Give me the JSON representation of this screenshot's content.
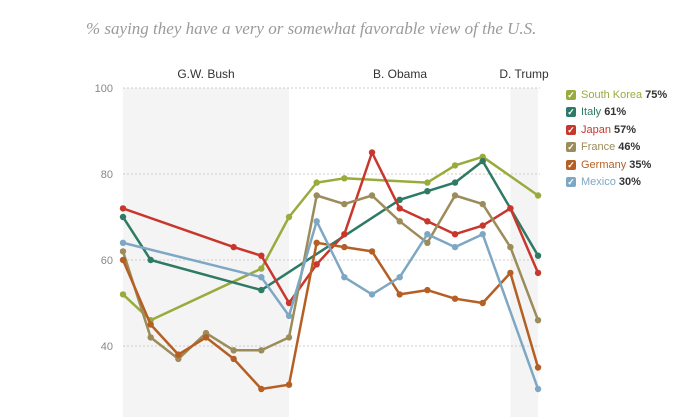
{
  "title": "% saying they have a very or somewhat favorable view of the U.S.",
  "periods": [
    {
      "label": "G.W. Bush",
      "start": 2002,
      "end": 2008
    },
    {
      "label": "B. Obama",
      "start": 2008,
      "end": 2016
    },
    {
      "label": "D. Trump",
      "start": 2016,
      "end": 2017
    }
  ],
  "chart_data": {
    "type": "line",
    "xlim": [
      2002,
      2017
    ],
    "ylim": [
      24,
      100
    ],
    "yticks": [
      40,
      60,
      80,
      100
    ],
    "grid": true,
    "legend_position": "right",
    "series": [
      {
        "name": "South Korea",
        "latest": "75%",
        "color": "#9aab3d",
        "points": [
          [
            2002,
            52
          ],
          [
            2003,
            46
          ],
          [
            2007,
            58
          ],
          [
            2008,
            70
          ],
          [
            2009,
            78
          ],
          [
            2010,
            79
          ],
          [
            2013,
            78
          ],
          [
            2014,
            82
          ],
          [
            2015,
            84
          ],
          [
            2017,
            75
          ]
        ]
      },
      {
        "name": "Italy",
        "latest": "61%",
        "color": "#2e7a64",
        "points": [
          [
            2002,
            70
          ],
          [
            2003,
            60
          ],
          [
            2007,
            53
          ],
          [
            2012,
            74
          ],
          [
            2013,
            76
          ],
          [
            2014,
            78
          ],
          [
            2015,
            83
          ],
          [
            2016,
            72
          ],
          [
            2017,
            61
          ]
        ]
      },
      {
        "name": "Japan",
        "latest": "57%",
        "color": "#c8372d",
        "points": [
          [
            2002,
            72
          ],
          [
            2006,
            63
          ],
          [
            2007,
            61
          ],
          [
            2008,
            50
          ],
          [
            2009,
            59
          ],
          [
            2010,
            66
          ],
          [
            2011,
            85
          ],
          [
            2012,
            72
          ],
          [
            2013,
            69
          ],
          [
            2014,
            66
          ],
          [
            2015,
            68
          ],
          [
            2016,
            72
          ],
          [
            2017,
            57
          ]
        ]
      },
      {
        "name": "France",
        "latest": "46%",
        "color": "#9b8c5a",
        "points": [
          [
            2002,
            62
          ],
          [
            2003,
            42
          ],
          [
            2004,
            37
          ],
          [
            2005,
            43
          ],
          [
            2006,
            39
          ],
          [
            2007,
            39
          ],
          [
            2008,
            42
          ],
          [
            2009,
            75
          ],
          [
            2010,
            73
          ],
          [
            2011,
            75
          ],
          [
            2012,
            69
          ],
          [
            2013,
            64
          ],
          [
            2014,
            75
          ],
          [
            2015,
            73
          ],
          [
            2016,
            63
          ],
          [
            2017,
            46
          ]
        ]
      },
      {
        "name": "Germany",
        "latest": "35%",
        "color": "#b55f25",
        "points": [
          [
            2002,
            60
          ],
          [
            2003,
            45
          ],
          [
            2004,
            38
          ],
          [
            2005,
            42
          ],
          [
            2006,
            37
          ],
          [
            2007,
            30
          ],
          [
            2008,
            31
          ],
          [
            2009,
            64
          ],
          [
            2010,
            63
          ],
          [
            2011,
            62
          ],
          [
            2012,
            52
          ],
          [
            2013,
            53
          ],
          [
            2014,
            51
          ],
          [
            2015,
            50
          ],
          [
            2016,
            57
          ],
          [
            2017,
            35
          ]
        ]
      },
      {
        "name": "Mexico",
        "latest": "30%",
        "color": "#7ea7c4",
        "points": [
          [
            2002,
            64
          ],
          [
            2007,
            56
          ],
          [
            2008,
            47
          ],
          [
            2009,
            69
          ],
          [
            2010,
            56
          ],
          [
            2011,
            52
          ],
          [
            2012,
            56
          ],
          [
            2013,
            66
          ],
          [
            2014,
            63
          ],
          [
            2015,
            66
          ],
          [
            2017,
            30
          ]
        ]
      }
    ]
  }
}
